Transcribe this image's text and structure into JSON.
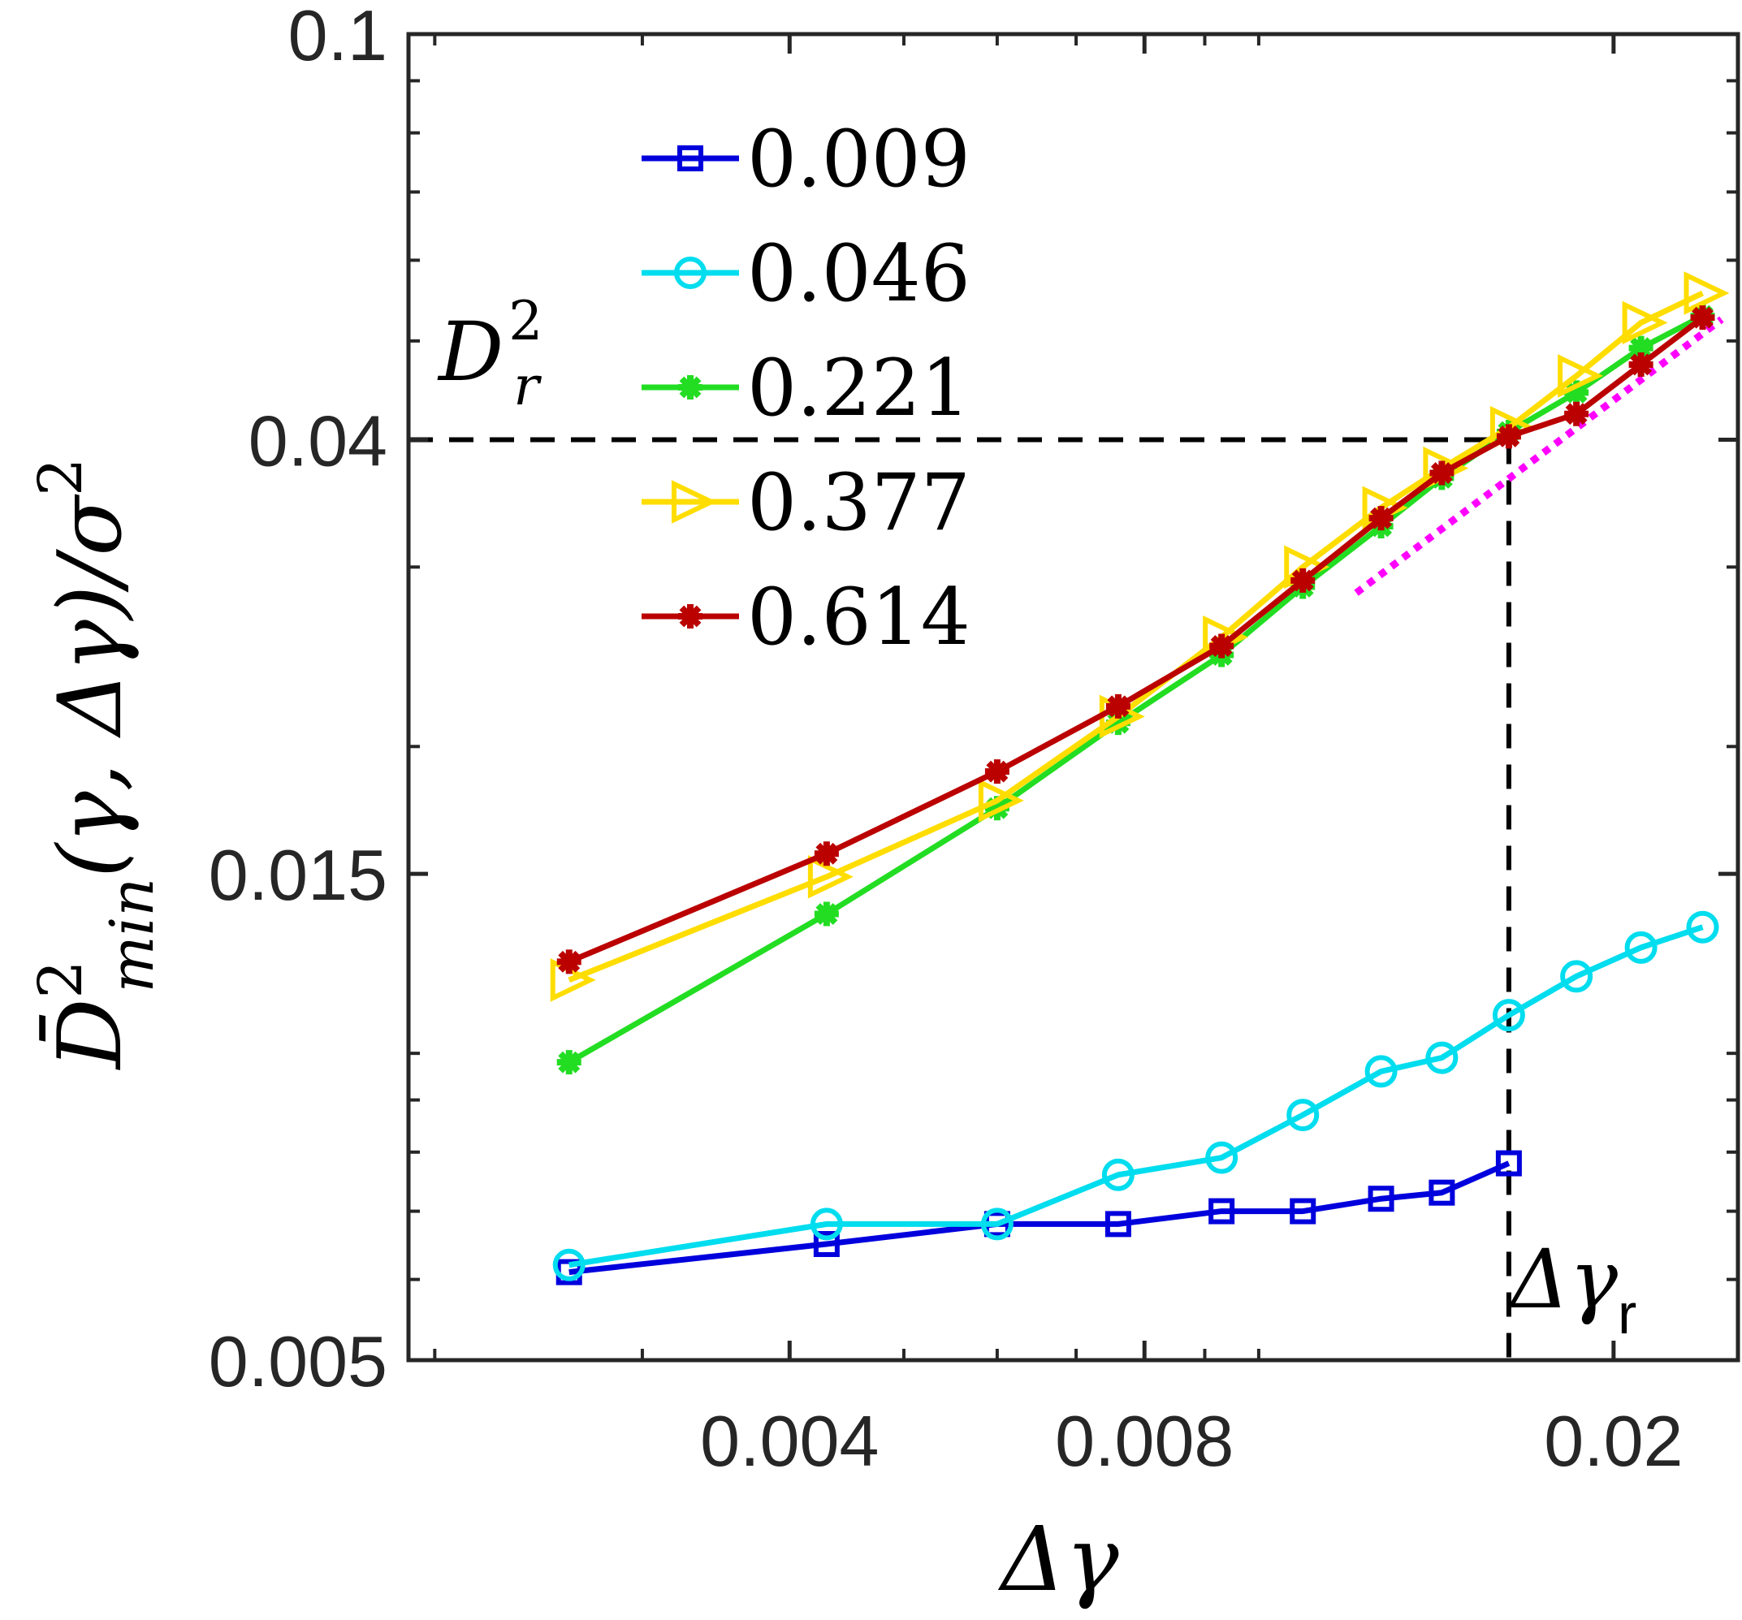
{
  "chart_data": {
    "type": "line",
    "xscale": "log",
    "yscale": "log",
    "xlim": [
      0.0019,
      0.0255
    ],
    "ylim": [
      0.005,
      0.1
    ],
    "xlabel": "Δγ",
    "ylabel_main": "D̄",
    "ylabel_sub": "min",
    "ylabel_sup": "2",
    "ylabel_rest": "(γ, Δγ)/σ",
    "ylabel_rest_sup": "2",
    "x_ticks": [
      {
        "value": 0.004,
        "label": "0.004"
      },
      {
        "value": 0.008,
        "label": "0.008"
      },
      {
        "value": 0.02,
        "label": "0.02"
      }
    ],
    "y_ticks": [
      {
        "value": 0.005,
        "label": "0.005"
      },
      {
        "value": 0.015,
        "label": "0.015"
      },
      {
        "value": 0.04,
        "label": "0.04"
      },
      {
        "value": 0.1,
        "label": "0.1"
      }
    ],
    "annotations": {
      "dr_main": "D",
      "dr_sup": "2",
      "dr_sub": "r",
      "dgr_main": "Δγ",
      "dgr_sub": "r",
      "dr_value": 0.04,
      "dgr_value": 0.0163
    },
    "fit_line": {
      "color": "#ff00ff",
      "x": [
        0.0121,
        0.0247
      ],
      "y": [
        0.0283,
        0.0525
      ]
    },
    "series": [
      {
        "name": "0.009",
        "color": "#0000dd",
        "marker": "square",
        "x": [
          0.0026,
          0.0043,
          0.006,
          0.0076,
          0.0093,
          0.0109,
          0.0127,
          0.0143,
          0.0163
        ],
        "y": [
          0.0061,
          0.0065,
          0.0068,
          0.0068,
          0.007,
          0.007,
          0.0072,
          0.0073,
          0.0078
        ]
      },
      {
        "name": "0.046",
        "color": "#00ddee",
        "marker": "circle",
        "x": [
          0.0026,
          0.0043,
          0.006,
          0.0076,
          0.0093,
          0.0109,
          0.0127,
          0.0143,
          0.0163,
          0.0186,
          0.0211,
          0.0238
        ],
        "y": [
          0.0062,
          0.0068,
          0.0068,
          0.0076,
          0.0079,
          0.0087,
          0.0096,
          0.0099,
          0.0109,
          0.0119,
          0.0127,
          0.0133
        ]
      },
      {
        "name": "0.221",
        "color": "#22dd22",
        "marker": "asterisk",
        "x": [
          0.0026,
          0.0043,
          0.006,
          0.0076,
          0.0093,
          0.0109,
          0.0127,
          0.0143,
          0.0163,
          0.0186,
          0.0211,
          0.0238
        ],
        "y": [
          0.0098,
          0.0137,
          0.0174,
          0.0211,
          0.0246,
          0.0287,
          0.0329,
          0.0367,
          0.0407,
          0.0445,
          0.0492,
          0.0529
        ]
      },
      {
        "name": "0.377",
        "color": "#ffdd00",
        "marker": "triangle-right",
        "x": [
          0.0026,
          0.0043,
          0.006,
          0.0076,
          0.0093,
          0.0109,
          0.0127,
          0.0143,
          0.0163,
          0.0186,
          0.0211,
          0.0238
        ],
        "y": [
          0.0118,
          0.0149,
          0.0177,
          0.0214,
          0.0256,
          0.03,
          0.0343,
          0.0375,
          0.0411,
          0.0462,
          0.0521,
          0.0557
        ]
      },
      {
        "name": "0.614",
        "color": "#bb0000",
        "marker": "asterisk",
        "x": [
          0.0026,
          0.0043,
          0.006,
          0.0076,
          0.0093,
          0.0109,
          0.0127,
          0.0143,
          0.0163,
          0.0186,
          0.0211,
          0.0238
        ],
        "y": [
          0.0123,
          0.0157,
          0.0189,
          0.0219,
          0.0251,
          0.0291,
          0.0335,
          0.0371,
          0.0403,
          0.0424,
          0.0474,
          0.0527
        ]
      }
    ]
  }
}
